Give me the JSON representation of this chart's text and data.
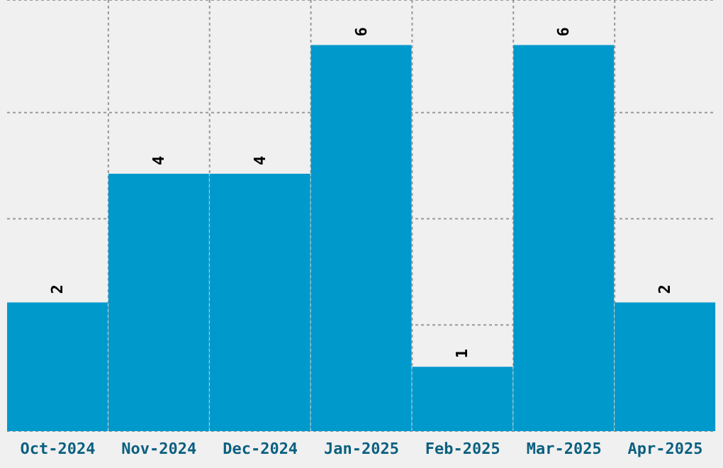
{
  "chart_data": {
    "type": "bar",
    "categories": [
      "Oct-2024",
      "Nov-2024",
      "Dec-2024",
      "Jan-2025",
      "Feb-2025",
      "Mar-2025",
      "Apr-2025"
    ],
    "values": [
      2,
      4,
      4,
      6,
      1,
      6,
      2
    ],
    "color": "#0099cc",
    "data_labels": true,
    "ylim": [
      0,
      6.7
    ],
    "yticks": [
      {
        "value": 1.65,
        "label": null
      },
      {
        "value": 3.3,
        "label": null
      },
      {
        "value": 4.95,
        "label": null
      }
    ],
    "grid": true,
    "tick_labels": "x"
  }
}
